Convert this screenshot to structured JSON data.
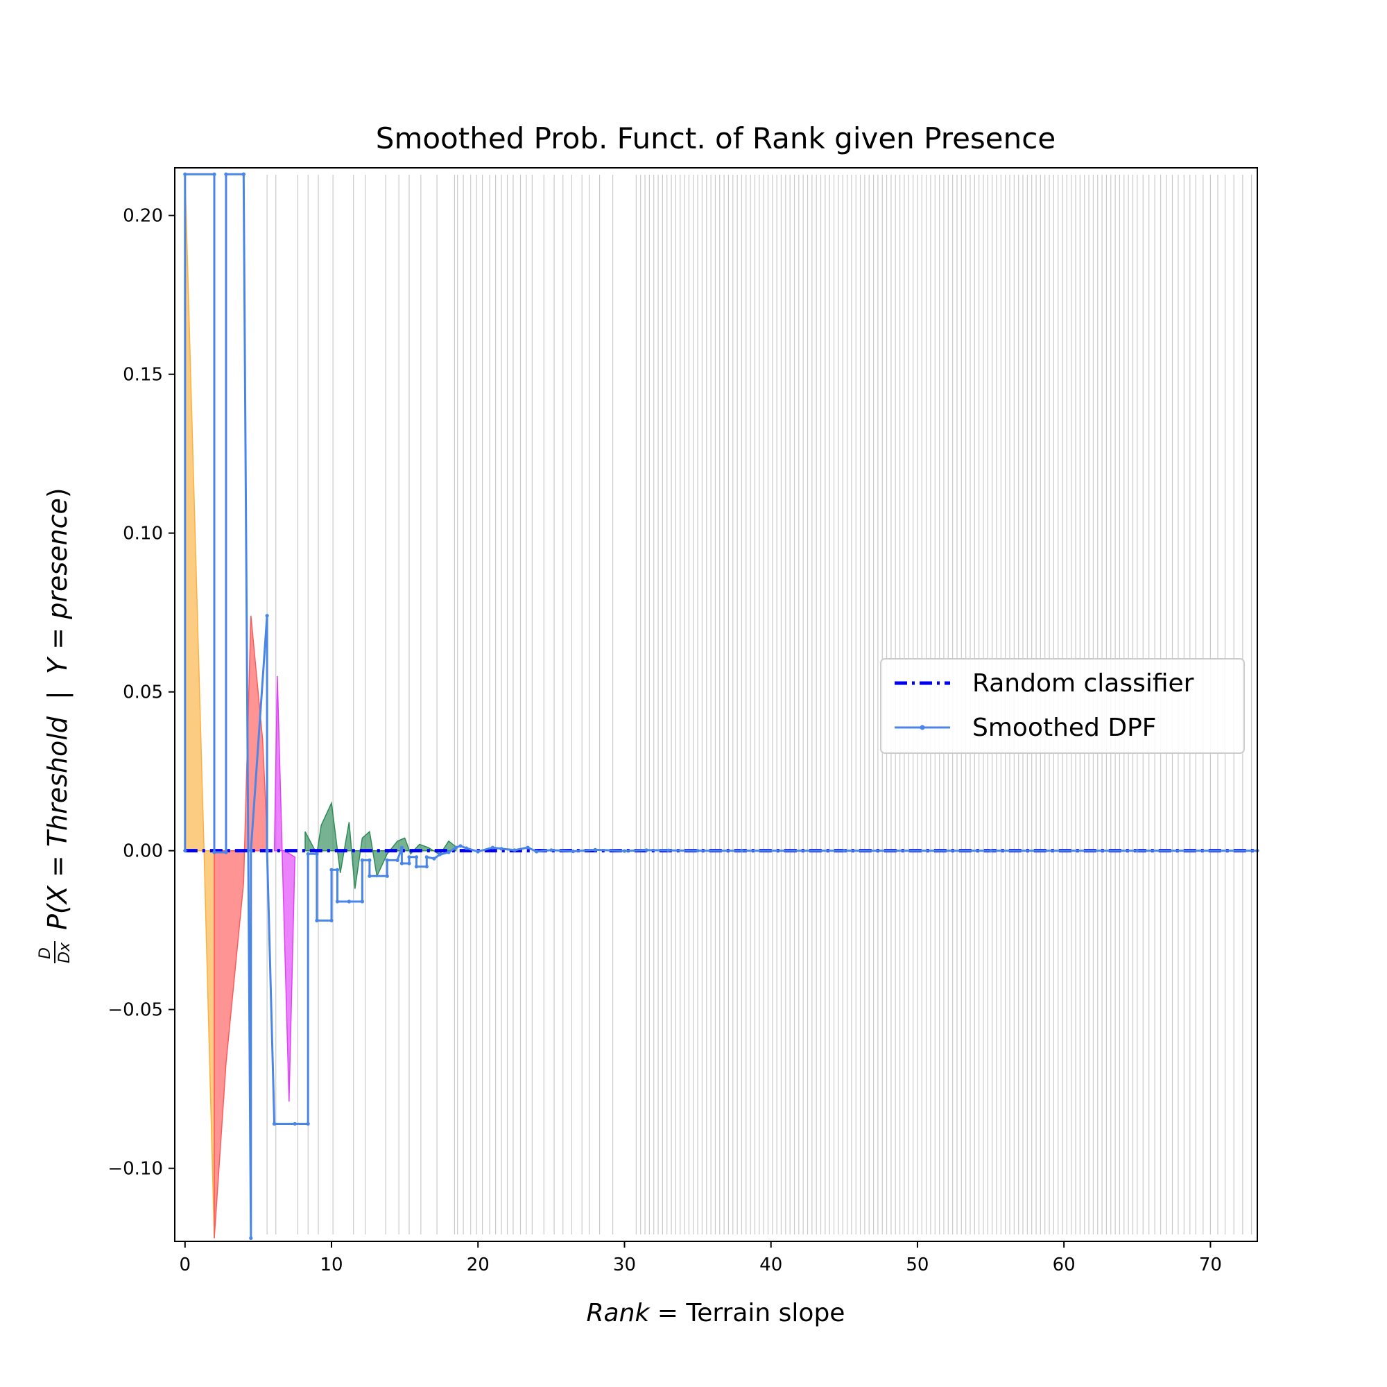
{
  "chart_data": {
    "type": "line",
    "title": "Smoothed Prob. Funct. of Rank given Presence",
    "xlabel": {
      "italic": "Rank",
      "rest": " = Terrain slope"
    },
    "ylabel": {
      "frac_num": "D",
      "frac_den": "Dx",
      "prefix": "P(X = ",
      "threshold": "Threshold",
      "sep": "  |  ",
      "ypart": "Y = ",
      "presence": "presence",
      "close": ")"
    },
    "xlim": [
      -0.7,
      73.2
    ],
    "ylim": [
      -0.123,
      0.215
    ],
    "x_ticks": [
      0,
      10,
      20,
      30,
      40,
      50,
      60,
      70
    ],
    "x_tick_labels": [
      "0",
      "10",
      "20",
      "30",
      "40",
      "50",
      "60",
      "70"
    ],
    "y_ticks": [
      -0.1,
      -0.05,
      0.0,
      0.05,
      0.1,
      0.15,
      0.2
    ],
    "y_tick_labels": [
      "−0.10",
      "−0.05",
      "0.00",
      "0.05",
      "0.10",
      "0.15",
      "0.20"
    ],
    "legend_position": "center-right",
    "legend": [
      {
        "label": "Random classifier",
        "style": "dashdot",
        "color": "#0000ee"
      },
      {
        "label": "Smoothed DPF",
        "style": "line-marker",
        "color": "#4a86e8"
      }
    ],
    "colors": {
      "dpf": "#4a86e8",
      "random": "#0000ee",
      "fill_orange": "#fbb040",
      "fill_red": "#ff5a5a",
      "fill_magenta": "#e040fb",
      "fill_green": "#2e8b57",
      "rug": "#9e9e9e"
    },
    "series": [
      {
        "name": "Smoothed DPF",
        "x": [
          0,
          0,
          2,
          2,
          2.8,
          2.8,
          4,
          4,
          4.5,
          4.5,
          5.6,
          5.6,
          6.1,
          6.1,
          7.5,
          8.4,
          8.4,
          9,
          9,
          10,
          10,
          10.4,
          10.4,
          11.2,
          11.2,
          12.1,
          12.1,
          12.6,
          12.6,
          13.8,
          13.8,
          14.5,
          14.8,
          14.8,
          15.3,
          15.3,
          15.8,
          15.8,
          16.5,
          16.5,
          17,
          17.4,
          18,
          18.5,
          18.8,
          19.2,
          20,
          21,
          21.6,
          22.5,
          23.4,
          24,
          25,
          26.5,
          28,
          30,
          31.5,
          33,
          35,
          38,
          45,
          55,
          65,
          73.2
        ],
        "y": [
          0,
          0.213,
          0.213,
          -0.0005,
          -0.0005,
          0.213,
          0.213,
          0.213,
          -0.122,
          0,
          0.074,
          0,
          -0.086,
          -0.086,
          -0.086,
          -0.086,
          -0.001,
          -0.001,
          -0.022,
          -0.022,
          -0.006,
          -0.006,
          -0.016,
          -0.016,
          -0.016,
          -0.016,
          -0.003,
          -0.003,
          -0.008,
          -0.008,
          -0.003,
          -0.003,
          0.001,
          -0.004,
          -0.004,
          -0.002,
          -0.002,
          -0.005,
          -0.005,
          -0.002,
          -0.0025,
          -0.0012,
          -0.0005,
          0.001,
          0.0015,
          0.0008,
          -0.0003,
          0.001,
          0.0006,
          0.0002,
          0.001,
          -0.0003,
          0.0002,
          -0.0002,
          0.0003,
          -0.0001,
          0.0002,
          0.0001,
          0,
          0,
          0,
          0,
          0,
          0
        ]
      },
      {
        "name": "Random classifier",
        "x": [
          0,
          73.2
        ],
        "y": [
          0,
          0
        ]
      }
    ],
    "fills": [
      {
        "color": "orange",
        "points": [
          [
            0,
            0.213
          ],
          [
            1.3,
            0
          ],
          [
            2,
            -0.122
          ],
          [
            2,
            0
          ],
          [
            0,
            0
          ]
        ]
      },
      {
        "color": "red",
        "points": [
          [
            2,
            -0.122
          ],
          [
            2.8,
            -0.067
          ],
          [
            4,
            -0.01
          ],
          [
            4.5,
            0.074
          ],
          [
            5.3,
            0.035
          ],
          [
            5.6,
            0.005
          ],
          [
            5.6,
            0
          ],
          [
            2,
            0
          ]
        ]
      },
      {
        "color": "magenta",
        "points": [
          [
            6.3,
            0.055
          ],
          [
            7.1,
            -0.079
          ],
          [
            7.5,
            -0.002
          ],
          [
            6.8,
            0
          ],
          [
            6.1,
            0
          ]
        ]
      },
      {
        "color": "green",
        "points": [
          [
            8.2,
            0.006
          ],
          [
            9,
            -0.001
          ],
          [
            9.3,
            0.008
          ],
          [
            10,
            0.015
          ],
          [
            10.6,
            -0.007
          ],
          [
            11.2,
            0.009
          ],
          [
            11.6,
            -0.012
          ],
          [
            12.1,
            0.004
          ],
          [
            12.6,
            0.006
          ],
          [
            13.1,
            -0.008
          ],
          [
            13.8,
            -0.001
          ],
          [
            14.5,
            0.003
          ],
          [
            15,
            0.004
          ],
          [
            15.4,
            -0.001
          ],
          [
            16,
            0.002
          ],
          [
            16.6,
            0.001
          ],
          [
            17.4,
            -0.0012
          ],
          [
            18,
            0.003
          ],
          [
            18.5,
            0.0012
          ],
          [
            18.5,
            0
          ],
          [
            8.2,
            0
          ]
        ]
      }
    ],
    "rug_x": [
      5.6,
      6.2,
      7.7,
      8.4,
      9.1,
      10.1,
      11.5,
      12.3,
      13.7,
      14.6,
      15.3,
      16.1,
      17.2,
      18.4,
      18.6,
      19,
      19.5,
      19.9,
      20.3,
      20.8,
      21.2,
      21.6,
      22,
      22.4,
      22.9,
      23.3,
      23.7,
      24.5,
      25.2,
      25.8,
      26.4,
      27.1,
      27.6,
      28.3,
      29.2,
      30.8,
      31.1,
      31.4,
      31.7,
      32,
      32.3,
      32.6,
      32.9,
      33.2,
      33.5,
      33.8,
      34.1,
      34.4,
      34.7,
      35,
      35.3,
      35.6,
      35.9,
      36.2,
      36.5,
      36.8,
      37.1,
      37.4,
      37.7,
      38,
      38.3,
      38.6,
      38.9,
      39.2,
      39.5,
      39.8,
      40.1,
      40.4,
      40.7,
      41,
      41.3,
      41.6,
      41.9,
      42.2,
      42.5,
      42.8,
      43.1,
      43.4,
      43.7,
      44,
      44.3,
      44.6,
      44.9,
      45.2,
      45.5,
      45.8,
      46.1,
      46.4,
      46.7,
      47,
      47.3,
      47.6,
      47.9,
      48.2,
      48.5,
      48.8,
      49.1,
      49.4,
      49.7,
      50,
      50.3,
      50.6,
      50.9,
      51.2,
      51.5,
      51.8,
      52.1,
      52.4,
      52.7,
      53,
      53.3,
      53.6,
      53.9,
      54.2,
      54.5,
      54.8,
      55.1,
      55.4,
      55.7,
      56,
      56.3,
      56.6,
      56.9,
      57.2,
      57.5,
      57.8,
      58.1,
      58.4,
      58.7,
      59,
      59.3,
      59.6,
      59.9,
      60.2,
      60.5,
      60.8,
      61.1,
      61.4,
      61.7,
      62,
      62.3,
      62.6,
      62.9,
      63.2,
      63.5,
      63.8,
      64.1,
      64.4,
      64.7,
      65,
      65.4,
      65.8,
      66.2,
      66.6,
      67,
      67.4,
      67.8,
      68.2,
      68.6,
      69,
      69.5,
      70,
      70.5,
      71,
      71.6,
      72.2,
      72.8
    ]
  }
}
